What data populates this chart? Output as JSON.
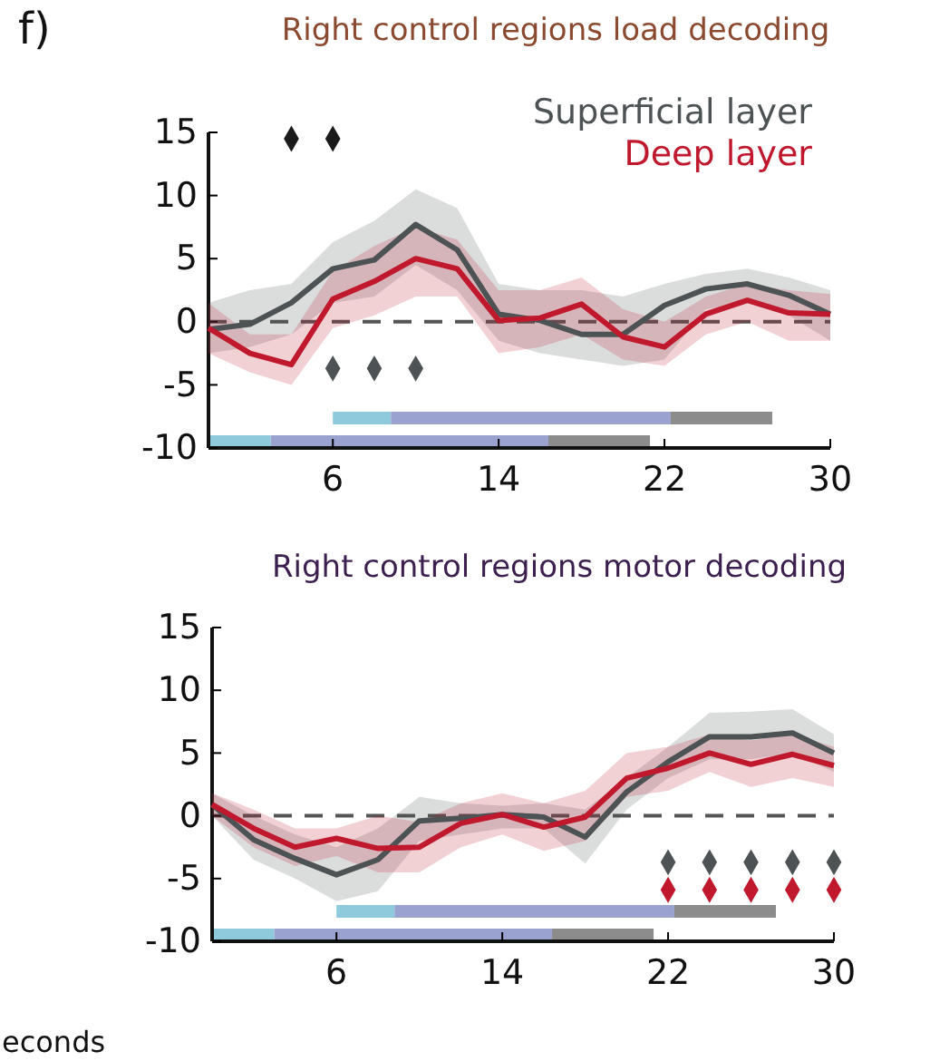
{
  "chart_data": [
    {
      "type": "line",
      "title": "Right control regions load decoding",
      "annotations": [
        "f)"
      ],
      "x": [
        0,
        2,
        4,
        6,
        8,
        10,
        12,
        14,
        16,
        18,
        20,
        22,
        24,
        26,
        28,
        30
      ],
      "xlim": [
        0,
        30
      ],
      "xticks": [
        6,
        14,
        22,
        30
      ],
      "ylim": [
        -10,
        15
      ],
      "yticks": [
        -10,
        -5,
        0,
        5,
        10,
        15
      ],
      "legend": "top right",
      "grid": false,
      "ref_lines": [
        {
          "axis": "y",
          "value": 0,
          "color": "#555555",
          "line_style": "dashed"
        }
      ],
      "bands": [
        {
          "axis": "x",
          "from": 6,
          "to": 8.8,
          "color": "#8ecadb"
        },
        {
          "axis": "x",
          "from": 8.8,
          "to": 22.3,
          "color": "#9aa3cf"
        },
        {
          "axis": "x",
          "from": 22.3,
          "to": 27.2,
          "color": "#8c8c8c"
        },
        {
          "axis": "x",
          "from": 0,
          "to": 3,
          "color": "#8ecadb"
        },
        {
          "axis": "x",
          "from": 3,
          "to": 16.4,
          "color": "#9aa3cf"
        },
        {
          "axis": "x",
          "from": 16.4,
          "to": 21.3,
          "color": "#8c8c8c"
        }
      ],
      "series": [
        {
          "name": "Superficial layer",
          "color": "#4d5354",
          "values": [
            -0.6,
            -0.2,
            1.5,
            4.2,
            4.9,
            7.7,
            5.7,
            0.6,
            0.1,
            -1,
            -1,
            1.3,
            2.6,
            3.0,
            2.1,
            0.6
          ],
          "upper": [
            1.5,
            2.5,
            3,
            6.3,
            8,
            10.5,
            9,
            3,
            2.5,
            2.5,
            2,
            3,
            3.8,
            4.2,
            3.5,
            2.5
          ],
          "lower": [
            -2.5,
            -2,
            -1,
            1.5,
            2,
            4.5,
            2.5,
            -1.5,
            -2.5,
            -3,
            -3.5,
            -3,
            1,
            1.5,
            0.5,
            -1.5
          ]
        },
        {
          "name": "Deep layer",
          "color": "#c0182d",
          "values": [
            -0.5,
            -2.5,
            -3.4,
            1.8,
            3.2,
            5.0,
            4.2,
            0.1,
            0.3,
            1.4,
            -1.2,
            -2.0,
            0.6,
            1.7,
            0.7,
            0.6
          ],
          "upper": [
            1.5,
            -1,
            -1,
            4,
            6,
            7.5,
            6.5,
            2.5,
            2.5,
            3.5,
            1,
            0,
            2,
            3,
            2.5,
            2.2
          ],
          "lower": [
            -2.5,
            -4,
            -5,
            -0.5,
            0.5,
            2,
            2,
            -2.5,
            -2,
            -1,
            -3,
            -3.5,
            -1,
            0,
            -1.5,
            -1.5
          ]
        },
        {
          "type": "scatter",
          "marker": "diamond",
          "color": "#1a1a1a",
          "x": [
            4,
            6
          ],
          "values": [
            14.5,
            14.5
          ]
        },
        {
          "type": "scatter",
          "marker": "diamond",
          "color": "#4d5354",
          "x": [
            6,
            8,
            10
          ],
          "values": [
            -3.7,
            -3.7,
            -3.7
          ]
        }
      ]
    },
    {
      "type": "line",
      "title": "Right control regions motor decoding",
      "annotations": [
        "econds"
      ],
      "x": [
        0,
        2,
        4,
        6,
        8,
        10,
        12,
        14,
        16,
        18,
        20,
        22,
        24,
        26,
        28,
        30
      ],
      "xlim": [
        0,
        30
      ],
      "xticks": [
        6,
        14,
        22,
        30
      ],
      "ylim": [
        -10,
        15
      ],
      "yticks": [
        -10,
        -5,
        0,
        5,
        10,
        15
      ],
      "grid": false,
      "ref_lines": [
        {
          "axis": "y",
          "value": 0,
          "color": "#555555",
          "line_style": "dashed"
        }
      ],
      "bands": [
        {
          "axis": "x",
          "from": 6,
          "to": 8.8,
          "color": "#8ecadb"
        },
        {
          "axis": "x",
          "from": 8.8,
          "to": 22.3,
          "color": "#9aa3cf"
        },
        {
          "axis": "x",
          "from": 22.3,
          "to": 27.2,
          "color": "#8c8c8c"
        },
        {
          "axis": "x",
          "from": 0,
          "to": 3,
          "color": "#8ecadb"
        },
        {
          "axis": "x",
          "from": 3,
          "to": 16.4,
          "color": "#9aa3cf"
        },
        {
          "axis": "x",
          "from": 16.4,
          "to": 21.3,
          "color": "#8c8c8c"
        }
      ],
      "series": [
        {
          "color": "#4d5354",
          "values": [
            0.9,
            -1.9,
            -3.4,
            -4.7,
            -3.5,
            -0.4,
            -0.2,
            0.1,
            -0.1,
            -1.7,
            1.9,
            4.3,
            6.3,
            6.3,
            6.6,
            5.0
          ],
          "upper": [
            1.8,
            0,
            -1.5,
            -2.5,
            -1,
            1.5,
            1,
            0.8,
            1,
            0.5,
            3,
            5.5,
            8.2,
            8.3,
            8.5,
            6.5
          ],
          "lower": [
            0,
            -3.5,
            -5,
            -6.8,
            -6,
            -2,
            -1.5,
            -1,
            -1,
            -3.8,
            0.5,
            3,
            4.5,
            4.5,
            5,
            3.5
          ]
        },
        {
          "color": "#c0182d",
          "values": [
            0.9,
            -1.0,
            -2.5,
            -1.8,
            -2.6,
            -2.5,
            -0.6,
            0.1,
            -0.9,
            -0.1,
            3.0,
            3.8,
            5.0,
            4.1,
            4.9,
            4.0
          ],
          "upper": [
            1.8,
            0.5,
            -1,
            -1,
            0,
            -0.5,
            1,
            1.8,
            1,
            2,
            5,
            5.5,
            6.5,
            6,
            6.5,
            5.5
          ],
          "lower": [
            0,
            -2.5,
            -4,
            -3.2,
            -4.5,
            -4.5,
            -2.5,
            -1.5,
            -2.8,
            -2,
            1.5,
            2,
            3.5,
            2.3,
            3,
            2.3
          ]
        },
        {
          "type": "scatter",
          "marker": "diamond",
          "color": "#4d5354",
          "x": [
            22,
            24,
            26,
            28,
            30
          ],
          "values": [
            -3.7,
            -3.7,
            -3.7,
            -3.7,
            -3.7
          ]
        },
        {
          "type": "scatter",
          "marker": "diamond",
          "color": "#c0182d",
          "x": [
            22,
            24,
            26,
            28,
            30
          ],
          "values": [
            -5.9,
            -5.9,
            -5.9,
            -5.9,
            -5.9
          ]
        }
      ]
    }
  ]
}
